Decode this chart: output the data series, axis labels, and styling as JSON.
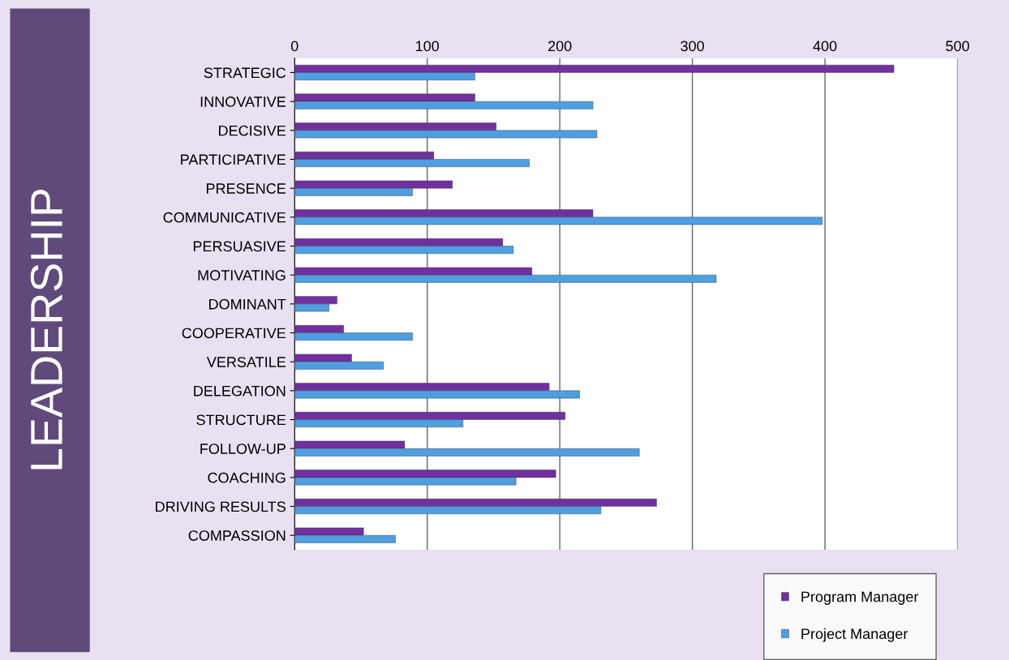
{
  "chart_data": {
    "type": "bar",
    "orientation": "horizontal",
    "title": "LEADERSHIP",
    "categories": [
      "STRATEGIC",
      "INNOVATIVE",
      "DECISIVE",
      "PARTICIPATIVE",
      "PRESENCE",
      "COMMUNICATIVE",
      "PERSUASIVE",
      "MOTIVATING",
      "DOMINANT",
      "COOPERATIVE",
      "VERSATILE",
      "DELEGATION",
      "STRUCTURE",
      "FOLLOW-UP",
      "COACHING",
      "DRIVING RESULTS",
      "COMPASSION"
    ],
    "series": [
      {
        "name": "Program Manager",
        "color": "#7030a0",
        "values": [
          452,
          136,
          152,
          105,
          119,
          225,
          157,
          179,
          32,
          37,
          43,
          192,
          204,
          83,
          197,
          273,
          52
        ]
      },
      {
        "name": "Project Manager",
        "color": "#4f9ee0",
        "values": [
          136,
          225,
          228,
          177,
          89,
          398,
          165,
          318,
          26,
          89,
          67,
          215,
          127,
          260,
          167,
          231,
          76
        ]
      }
    ],
    "xlim": [
      0,
      500
    ],
    "xticks": [
      0,
      100,
      200,
      300,
      400,
      500
    ],
    "grid": "x",
    "legend": "bottom right"
  }
}
